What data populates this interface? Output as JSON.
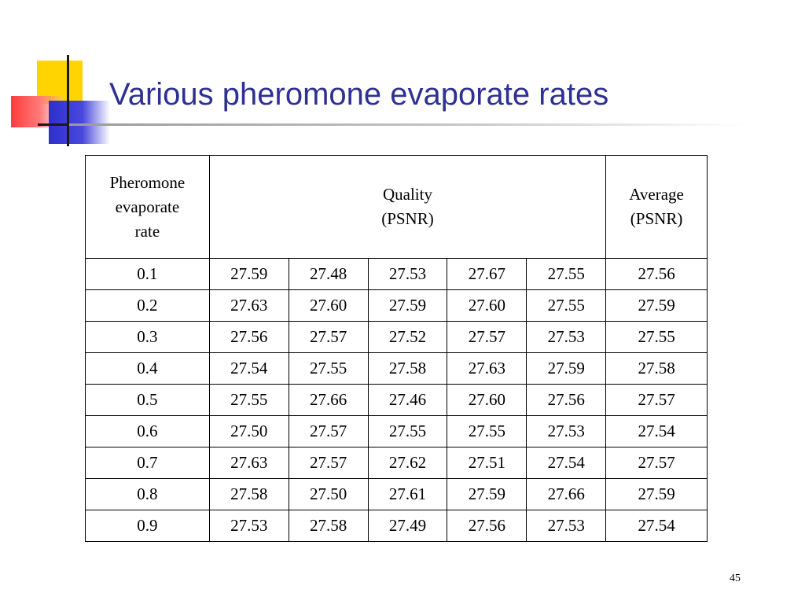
{
  "slide": {
    "title": "Various pheromone evaporate rates",
    "page_number": "45"
  },
  "table": {
    "header": {
      "rate_label": [
        "Pheromone",
        "evaporate",
        "rate"
      ],
      "quality_label": [
        "Quality",
        "(PSNR)"
      ],
      "average_label": [
        "Average",
        "(PSNR)"
      ]
    },
    "rows": [
      {
        "rate": "0.1",
        "values": [
          "27.59",
          "27.48",
          "27.53",
          "27.67",
          "27.55"
        ],
        "average": "27.56"
      },
      {
        "rate": "0.2",
        "values": [
          "27.63",
          "27.60",
          "27.59",
          "27.60",
          "27.55"
        ],
        "average": "27.59"
      },
      {
        "rate": "0.3",
        "values": [
          "27.56",
          "27.57",
          "27.52",
          "27.57",
          "27.53"
        ],
        "average": "27.55"
      },
      {
        "rate": "0.4",
        "values": [
          "27.54",
          "27.55",
          "27.58",
          "27.63",
          "27.59"
        ],
        "average": "27.58"
      },
      {
        "rate": "0.5",
        "values": [
          "27.55",
          "27.66",
          "27.46",
          "27.60",
          "27.56"
        ],
        "average": "27.57"
      },
      {
        "rate": "0.6",
        "values": [
          "27.50",
          "27.57",
          "27.55",
          "27.55",
          "27.53"
        ],
        "average": "27.54"
      },
      {
        "rate": "0.7",
        "values": [
          "27.63",
          "27.57",
          "27.62",
          "27.51",
          "27.54"
        ],
        "average": "27.57"
      },
      {
        "rate": "0.8",
        "values": [
          "27.58",
          "27.50",
          "27.61",
          "27.59",
          "27.66"
        ],
        "average": "27.59"
      },
      {
        "rate": "0.9",
        "values": [
          "27.53",
          "27.58",
          "27.49",
          "27.56",
          "27.53"
        ],
        "average": "27.54"
      }
    ]
  }
}
